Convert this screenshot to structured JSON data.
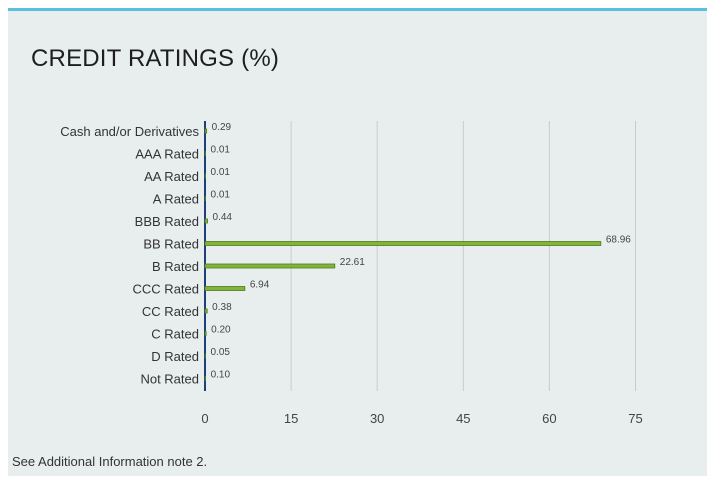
{
  "title": "CREDIT RATINGS (%)",
  "footnote": "See Additional Information note 2.",
  "colors": {
    "bar": "#82b43c",
    "bar_stroke": "#4e7a1c",
    "grid": "#c8cbce",
    "baseline": "#1f3f7a",
    "accent_top": "#5bbfe0",
    "panel_bg": "#e8eeee"
  },
  "chart_data": {
    "type": "bar",
    "orientation": "horizontal",
    "categories": [
      "Cash and/or Derivatives",
      "AAA Rated",
      "AA Rated",
      "A Rated",
      "BBB Rated",
      "BB Rated",
      "B Rated",
      "CCC Rated",
      "CC Rated",
      "C Rated",
      "D Rated",
      "Not Rated"
    ],
    "values": [
      0.29,
      0.01,
      0.01,
      0.01,
      0.44,
      68.96,
      22.61,
      6.94,
      0.38,
      0.2,
      0.05,
      0.1
    ],
    "value_labels": [
      "0.29",
      "0.01",
      "0.01",
      "0.01",
      "0.44",
      "68.96",
      "22.61",
      "6.94",
      "0.38",
      "0.20",
      "0.05",
      "0.10"
    ],
    "xlim": [
      0,
      75
    ],
    "xticks": [
      "0",
      "15",
      "30",
      "45",
      "60",
      "75"
    ],
    "grid": true
  }
}
